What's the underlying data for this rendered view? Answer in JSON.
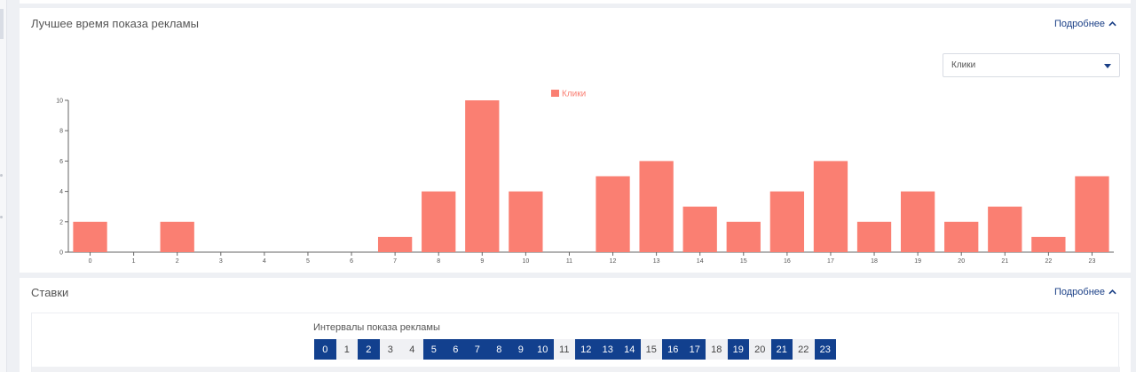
{
  "best_time_card": {
    "title": "Лучшее время показа рекламы",
    "more_label": "Подробнее",
    "metric_select": {
      "value": "Клики"
    }
  },
  "bids_card": {
    "title": "Ставки",
    "more_label": "Подробнее",
    "intervals_label": "Интервалы показа рекламы",
    "hours": [
      {
        "label": "0",
        "active": true
      },
      {
        "label": "1",
        "active": false
      },
      {
        "label": "2",
        "active": true
      },
      {
        "label": "3",
        "active": false
      },
      {
        "label": "4",
        "active": false
      },
      {
        "label": "5",
        "active": true
      },
      {
        "label": "6",
        "active": true
      },
      {
        "label": "7",
        "active": true
      },
      {
        "label": "8",
        "active": true
      },
      {
        "label": "9",
        "active": true
      },
      {
        "label": "10",
        "active": true
      },
      {
        "label": "11",
        "active": false
      },
      {
        "label": "12",
        "active": true
      },
      {
        "label": "13",
        "active": true
      },
      {
        "label": "14",
        "active": true
      },
      {
        "label": "15",
        "active": false
      },
      {
        "label": "16",
        "active": true
      },
      {
        "label": "17",
        "active": true
      },
      {
        "label": "18",
        "active": false
      },
      {
        "label": "19",
        "active": true
      },
      {
        "label": "20",
        "active": false
      },
      {
        "label": "21",
        "active": true
      },
      {
        "label": "22",
        "active": false
      },
      {
        "label": "23",
        "active": true
      }
    ]
  },
  "colors": {
    "bar": "#fa7f72",
    "accent": "#12408e",
    "link": "#1a3f86"
  },
  "chart_data": {
    "type": "bar",
    "categories": [
      "0",
      "1",
      "2",
      "3",
      "4",
      "5",
      "6",
      "7",
      "8",
      "9",
      "10",
      "11",
      "12",
      "13",
      "14",
      "15",
      "16",
      "17",
      "18",
      "19",
      "20",
      "21",
      "22",
      "23"
    ],
    "series": [
      {
        "name": "Клики",
        "values": [
          2,
          0,
          2,
          0,
          0,
          0,
          0,
          1,
          4,
          10,
          4,
          0,
          5,
          6,
          3,
          2,
          4,
          6,
          2,
          4,
          2,
          3,
          1,
          5
        ]
      }
    ],
    "y_ticks": [
      "0",
      "2",
      "4",
      "6",
      "8",
      "10"
    ],
    "ylim": [
      0,
      10
    ],
    "legend_position": "top-center",
    "grid": false
  }
}
